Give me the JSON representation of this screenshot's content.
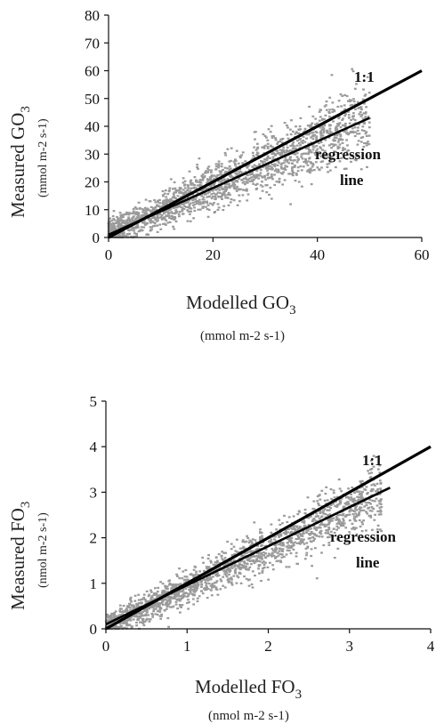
{
  "chart_data": [
    {
      "type": "scatter",
      "xlabel_main": "Modelled GO",
      "xlabel_sub": "3",
      "xunit": "(mmol m-2 s-1)",
      "ylabel_main": "Measured GO",
      "ylabel_sub": "3",
      "yunit": "(mmol m-2 s-1)",
      "xlim": [
        0,
        60
      ],
      "ylim": [
        0,
        80
      ],
      "xticks": [
        "0",
        "20",
        "40",
        "60"
      ],
      "yticks": [
        "0",
        "10",
        "20",
        "30",
        "40",
        "50",
        "60",
        "70",
        "80"
      ],
      "one_to_one_label": "1:1",
      "regression_label_1": "regression",
      "regression_label_2": "line",
      "one_to_one_line": {
        "x": [
          0,
          60
        ],
        "y": [
          0,
          60
        ]
      },
      "regression_line": {
        "x": [
          0,
          50
        ],
        "y": [
          1,
          43
        ]
      },
      "point_cloud": {
        "count": 1800,
        "x_range": [
          0,
          50
        ],
        "slope": 0.83,
        "intercept": 1.5,
        "spread": 7
      }
    },
    {
      "type": "scatter",
      "xlabel_main": "Modelled FO",
      "xlabel_sub": "3",
      "xunit": "(nmol m-2 s-1)",
      "ylabel_main": "Measured FO",
      "ylabel_sub": "3",
      "yunit": "(nmol m-2 s-1)",
      "xlim": [
        0,
        4
      ],
      "ylim": [
        0,
        5
      ],
      "xticks": [
        "0",
        "1",
        "2",
        "3",
        "4"
      ],
      "yticks": [
        "0",
        "1",
        "2",
        "3",
        "4",
        "5"
      ],
      "one_to_one_label": "1:1",
      "regression_label_1": "regression",
      "regression_label_2": "line",
      "one_to_one_line": {
        "x": [
          0,
          4
        ],
        "y": [
          0,
          4
        ]
      },
      "regression_line": {
        "x": [
          0,
          3.5
        ],
        "y": [
          0.1,
          3.1
        ]
      },
      "point_cloud": {
        "count": 1800,
        "x_range": [
          0,
          3.4
        ],
        "slope": 0.86,
        "intercept": 0.05,
        "spread": 0.35
      }
    }
  ]
}
